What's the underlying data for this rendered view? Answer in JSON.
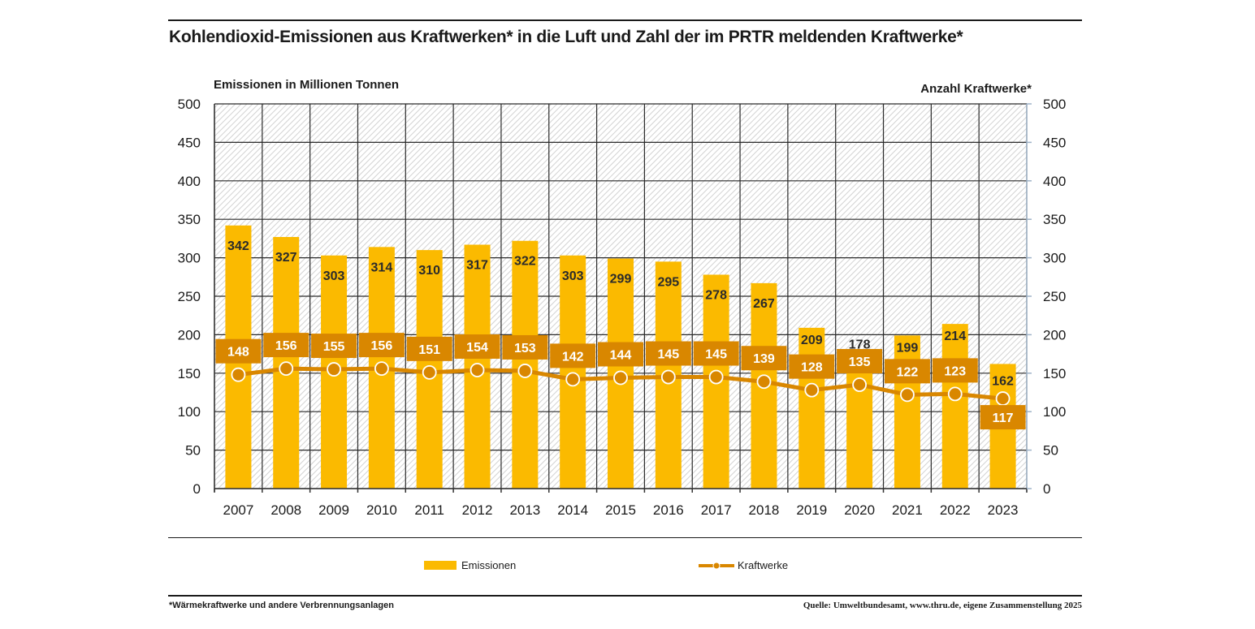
{
  "header": {
    "title": "Kohlendioxid-Emissionen aus Kraftwerken* in die Luft und Zahl der im PRTR meldenden Kraftwerke*"
  },
  "colors": {
    "bar": "#FBBA00",
    "line": "#D98700",
    "label_box": "#D98700",
    "grid": "#1a1a1a",
    "hatch": "#cfcfcf"
  },
  "chart_data": {
    "type": "bar",
    "title": "Kohlendioxid-Emissionen aus Kraftwerken* in die Luft und Zahl der im PRTR meldenden Kraftwerke*",
    "categories": [
      "2007",
      "2008",
      "2009",
      "2010",
      "2011",
      "2012",
      "2013",
      "2014",
      "2015",
      "2016",
      "2017",
      "2018",
      "2019",
      "2020",
      "2021",
      "2022",
      "2023"
    ],
    "series": [
      {
        "name": "Emissionen",
        "type": "bar",
        "axis": "left",
        "values": [
          342,
          327,
          303,
          314,
          310,
          317,
          322,
          303,
          299,
          295,
          278,
          267,
          209,
          178,
          199,
          214,
          162
        ]
      },
      {
        "name": "Kraftwerke",
        "type": "line",
        "axis": "right",
        "values": [
          148,
          156,
          155,
          156,
          151,
          154,
          153,
          142,
          144,
          145,
          145,
          139,
          128,
          135,
          122,
          123,
          117
        ]
      }
    ],
    "ylabel": "Emissionen in Millionen Tonnen",
    "ylabel_right": "Anzahl Kraftwerke*",
    "xlabel": "",
    "ylim": [
      0,
      500
    ],
    "ylim_right": [
      0,
      500
    ],
    "yticks": [
      "0",
      "50",
      "100",
      "150",
      "200",
      "250",
      "300",
      "350",
      "400",
      "450",
      "500"
    ],
    "grid": true,
    "legend_position": "bottom"
  },
  "legend": {
    "bar_label": "Emissionen",
    "line_label": "Kraftwerke"
  },
  "footer": {
    "note": "*Wärmekraftwerke und andere Verbrennungsanlagen",
    "source": "Quelle: Umweltbundesamt, www.thru.de, eigene Zusammenstellung 2025"
  }
}
